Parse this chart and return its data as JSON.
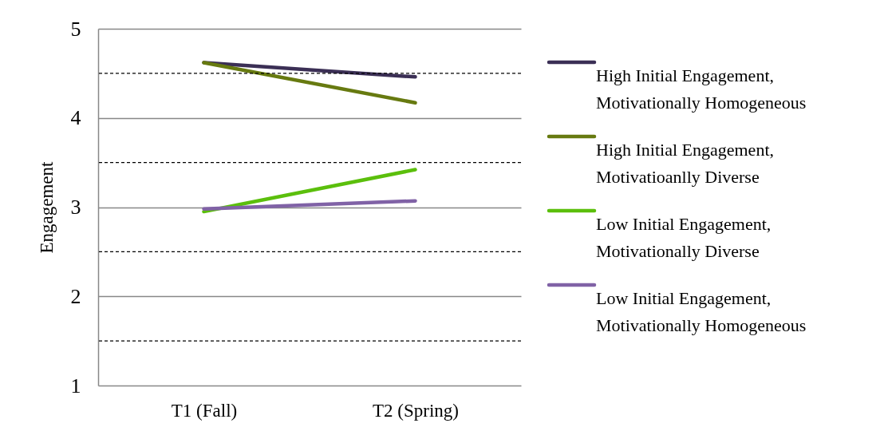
{
  "chart_data": {
    "type": "line",
    "ylabel": "Engagement",
    "categories": [
      "T1 (Fall)",
      "T2 (Spring)"
    ],
    "ylim": [
      1,
      5
    ],
    "yticks": [
      1,
      2,
      3,
      4,
      5
    ],
    "grid": "y",
    "legend": "right",
    "line_style": "solid",
    "marker": "none",
    "series": [
      {
        "name": "High Initial Engagement, Motivationally Homogeneous",
        "color": "#3b2f55",
        "values": [
          4.62,
          4.46
        ]
      },
      {
        "name": "High Initial Engagement, Motivatioanlly Diverse",
        "color": "#677a10",
        "values": [
          4.62,
          4.17
        ]
      },
      {
        "name": "Low Initial Engagement, Motivationally Diverse",
        "color": "#5bbf0c",
        "values": [
          2.95,
          3.42
        ]
      },
      {
        "name": "Low Initial Engagement, Motivationally Homogeneous",
        "color": "#8062a6",
        "values": [
          2.98,
          3.07
        ]
      }
    ],
    "ref_lines": [
      {
        "axis": "y",
        "value": 1.5,
        "color": "#000000",
        "line_style": "dashed"
      },
      {
        "axis": "y",
        "value": 2.5,
        "color": "#000000",
        "line_style": "dashed"
      },
      {
        "axis": "y",
        "value": 3.5,
        "color": "#000000",
        "line_style": "dashed"
      },
      {
        "axis": "y",
        "value": 4.5,
        "color": "#000000",
        "line_style": "dashed"
      }
    ]
  }
}
